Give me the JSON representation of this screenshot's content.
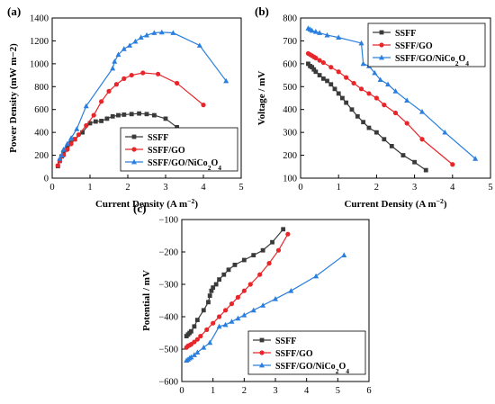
{
  "figure": {
    "panel_labels": [
      "(a)",
      "(b)",
      "(c)"
    ]
  },
  "colors": {
    "SSFF": "#3a3a3a",
    "SSFF/GO": "#e8262a",
    "SSFF/GO/NiCo2O4": "#2a7fde"
  },
  "chart_data": [
    {
      "id": "a",
      "type": "line",
      "panel_label": "(a)",
      "xlabel": "Current Density (A m−2)",
      "ylabel": "Power Density (mW m−2)",
      "xlim": [
        0,
        5
      ],
      "ylim": [
        0,
        1400
      ],
      "xticks": [
        0,
        1,
        2,
        3,
        4,
        5
      ],
      "yticks": [
        0,
        200,
        400,
        600,
        800,
        1000,
        1200,
        1400
      ],
      "legend": [
        "SSFF",
        "SSFF/GO",
        "SSFF/GO/NiCo2O4"
      ],
      "legend_position": "bottom-right",
      "series": [
        {
          "name": "SSFF",
          "marker": "square",
          "x": [
            0.15,
            0.2,
            0.25,
            0.3,
            0.4,
            0.5,
            0.6,
            0.8,
            1.0,
            1.15,
            1.3,
            1.45,
            1.6,
            1.75,
            1.9,
            2.1,
            2.3,
            2.5,
            2.7,
            3.0,
            3.3
          ],
          "y": [
            105,
            150,
            190,
            225,
            270,
            310,
            340,
            400,
            480,
            495,
            500,
            520,
            540,
            550,
            555,
            560,
            565,
            560,
            550,
            520,
            445
          ]
        },
        {
          "name": "SSFF/GO",
          "marker": "circle",
          "x": [
            0.15,
            0.2,
            0.3,
            0.4,
            0.5,
            0.6,
            0.7,
            0.9,
            1.1,
            1.3,
            1.5,
            1.7,
            1.9,
            2.1,
            2.4,
            2.8,
            3.3,
            4.0
          ],
          "y": [
            110,
            150,
            200,
            250,
            300,
            340,
            380,
            460,
            550,
            670,
            760,
            820,
            870,
            900,
            920,
            910,
            830,
            640
          ]
        },
        {
          "name": "SSFF/GO/NiCo2O4",
          "marker": "triangle",
          "x": [
            0.2,
            0.25,
            0.3,
            0.4,
            0.5,
            0.65,
            0.9,
            1.6,
            1.65,
            1.75,
            1.9,
            2.05,
            2.2,
            2.35,
            2.5,
            2.7,
            2.9,
            3.2,
            3.9,
            4.6
          ],
          "y": [
            170,
            200,
            250,
            300,
            350,
            430,
            630,
            960,
            1020,
            1080,
            1130,
            1160,
            1195,
            1230,
            1250,
            1270,
            1275,
            1270,
            1160,
            850
          ]
        }
      ]
    },
    {
      "id": "b",
      "type": "line",
      "panel_label": "(b)",
      "xlabel": "Current Density (A m−2)",
      "ylabel": "Voltage / mV",
      "xlim": [
        0,
        5
      ],
      "ylim": [
        100,
        800
      ],
      "xticks": [
        0,
        1,
        2,
        3,
        4,
        5
      ],
      "yticks": [
        100,
        200,
        300,
        400,
        500,
        600,
        700,
        800
      ],
      "legend": [
        "SSFF",
        "SSFF/GO",
        "SSFF/GO/NiCo2O4"
      ],
      "legend_position": "top-right",
      "series": [
        {
          "name": "SSFF",
          "marker": "square",
          "x": [
            0.2,
            0.25,
            0.3,
            0.35,
            0.4,
            0.5,
            0.6,
            0.7,
            0.8,
            0.9,
            1.0,
            1.1,
            1.2,
            1.35,
            1.5,
            1.65,
            1.8,
            2.0,
            2.2,
            2.4,
            2.7,
            3.0,
            3.3
          ],
          "y": [
            600,
            590,
            585,
            575,
            565,
            550,
            535,
            525,
            510,
            490,
            470,
            450,
            430,
            400,
            370,
            345,
            320,
            300,
            270,
            240,
            200,
            170,
            135
          ]
        },
        {
          "name": "SSFF/GO",
          "marker": "circle",
          "x": [
            0.2,
            0.25,
            0.3,
            0.35,
            0.4,
            0.5,
            0.6,
            0.8,
            1.0,
            1.2,
            1.4,
            1.6,
            1.8,
            2.0,
            2.2,
            2.5,
            2.8,
            3.2,
            4.0
          ],
          "y": [
            645,
            640,
            635,
            630,
            625,
            615,
            605,
            585,
            565,
            540,
            515,
            490,
            470,
            450,
            420,
            385,
            340,
            270,
            160
          ]
        },
        {
          "name": "SSFF/GO/NiCo2O4",
          "marker": "triangle",
          "x": [
            0.2,
            0.25,
            0.3,
            0.4,
            0.5,
            0.7,
            1.0,
            1.6,
            1.65,
            1.8,
            1.95,
            2.1,
            2.3,
            2.5,
            2.8,
            3.2,
            3.8,
            4.6
          ],
          "y": [
            755,
            750,
            745,
            740,
            735,
            725,
            715,
            690,
            600,
            590,
            560,
            530,
            510,
            480,
            440,
            390,
            300,
            185
          ]
        }
      ]
    },
    {
      "id": "c",
      "type": "line",
      "panel_label": "(c)",
      "xlabel": "Current Density (A m−2)",
      "ylabel": "Potential / mV",
      "xlim": [
        0,
        6
      ],
      "ylim": [
        -600,
        -100
      ],
      "xticks": [
        0,
        1,
        2,
        3,
        4,
        5,
        6
      ],
      "yticks": [
        -600,
        -500,
        -400,
        -300,
        -200,
        -100
      ],
      "legend": [
        "SSFF",
        "SSFF/GO",
        "SSFF/GO/NiCo2O4"
      ],
      "legend_position": "bottom-right",
      "series": [
        {
          "name": "SSFF",
          "marker": "square",
          "x": [
            0.15,
            0.2,
            0.25,
            0.3,
            0.4,
            0.5,
            0.7,
            0.85,
            0.9,
            0.95,
            1.0,
            1.1,
            1.2,
            1.35,
            1.5,
            1.7,
            2.0,
            2.3,
            2.6,
            2.9,
            3.25
          ],
          "y": [
            -460,
            -455,
            -450,
            -445,
            -430,
            -410,
            -380,
            -355,
            -335,
            -320,
            -310,
            -300,
            -285,
            -270,
            -255,
            -240,
            -225,
            -210,
            -195,
            -170,
            -130
          ]
        },
        {
          "name": "SSFF/GO",
          "marker": "circle",
          "x": [
            0.15,
            0.2,
            0.25,
            0.3,
            0.4,
            0.5,
            0.6,
            0.8,
            1.0,
            1.2,
            1.4,
            1.6,
            1.8,
            2.0,
            2.2,
            2.5,
            2.8,
            3.1,
            3.4
          ],
          "y": [
            -495,
            -490,
            -488,
            -485,
            -478,
            -470,
            -460,
            -440,
            -420,
            -400,
            -380,
            -360,
            -340,
            -320,
            -300,
            -270,
            -235,
            -195,
            -145
          ]
        },
        {
          "name": "SSFF/GO/NiCo2O4",
          "marker": "triangle",
          "x": [
            0.15,
            0.2,
            0.25,
            0.3,
            0.4,
            0.5,
            0.7,
            0.9,
            1.2,
            1.4,
            1.6,
            1.8,
            2.0,
            2.3,
            2.6,
            3.0,
            3.5,
            4.3,
            5.2
          ],
          "y": [
            -535,
            -532,
            -528,
            -525,
            -518,
            -510,
            -495,
            -480,
            -430,
            -425,
            -415,
            -405,
            -395,
            -380,
            -365,
            -345,
            -320,
            -275,
            -210
          ]
        }
      ]
    }
  ]
}
